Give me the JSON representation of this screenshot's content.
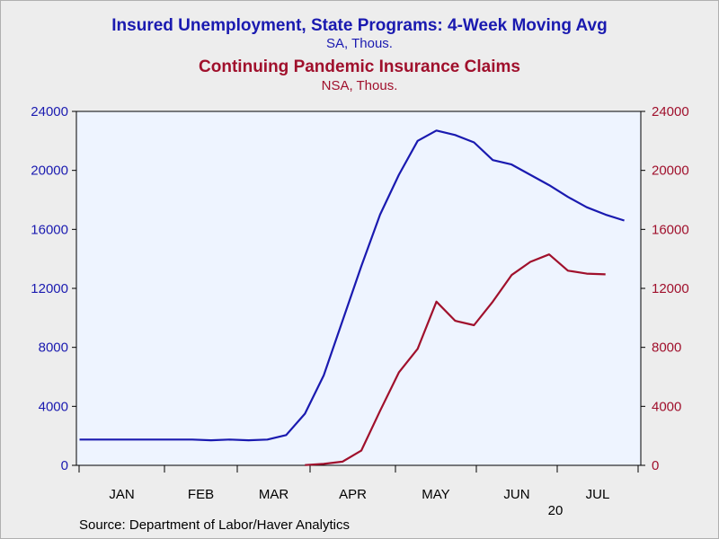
{
  "chart_data": {
    "type": "line",
    "title": "Insured Unemployment, State Programs: 4-Week Moving Avg",
    "subtitle": "SA, Thous.",
    "title2": "Continuing Pandemic Insurance Claims",
    "subtitle2": "NSA, Thous.",
    "x_unit": "week of 2020",
    "x_tick_labels": [
      "JAN",
      "FEB",
      "MAR",
      "APR",
      "MAY",
      "JUN",
      "JUL"
    ],
    "x_year_label": "20",
    "y_left": {
      "lim": [
        0,
        24000
      ],
      "ticks": [
        "0",
        "4000",
        "8000",
        "12000",
        "16000",
        "20000",
        "24000"
      ]
    },
    "y_right": {
      "lim": [
        0,
        24000
      ],
      "ticks": [
        "0",
        "4000",
        "8000",
        "12000",
        "16000",
        "20000",
        "24000"
      ]
    },
    "grid": false,
    "series": [
      {
        "color": "#1a1ab0",
        "axis": "left",
        "x": [
          0,
          1,
          2,
          3,
          4,
          5,
          6,
          7,
          8,
          9,
          10,
          11,
          12,
          13,
          14,
          15,
          16,
          17,
          18,
          19,
          20,
          21,
          22,
          23,
          24,
          25,
          26,
          27,
          28,
          29
        ],
        "values": [
          1750,
          1750,
          1750,
          1750,
          1750,
          1750,
          1750,
          1700,
          1750,
          1700,
          1750,
          2050,
          3500,
          6100,
          9800,
          13500,
          17000,
          19700,
          22000,
          22700,
          22400,
          21900,
          20700,
          20400,
          19700,
          19000,
          18200,
          17500,
          17000,
          16600
        ]
      },
      {
        "color": "#a0102c",
        "axis": "right",
        "x": [
          12,
          13,
          14,
          15,
          16,
          17,
          18,
          19,
          20,
          21,
          22,
          23,
          24,
          25,
          26,
          27,
          28
        ],
        "values": [
          20,
          100,
          250,
          1000,
          3700,
          6300,
          7900,
          11100,
          9800,
          9500,
          11100,
          12900,
          13800,
          14300,
          13200,
          13000,
          12950
        ]
      }
    ]
  },
  "source": "Source:  Department of Labor/Haver Analytics"
}
